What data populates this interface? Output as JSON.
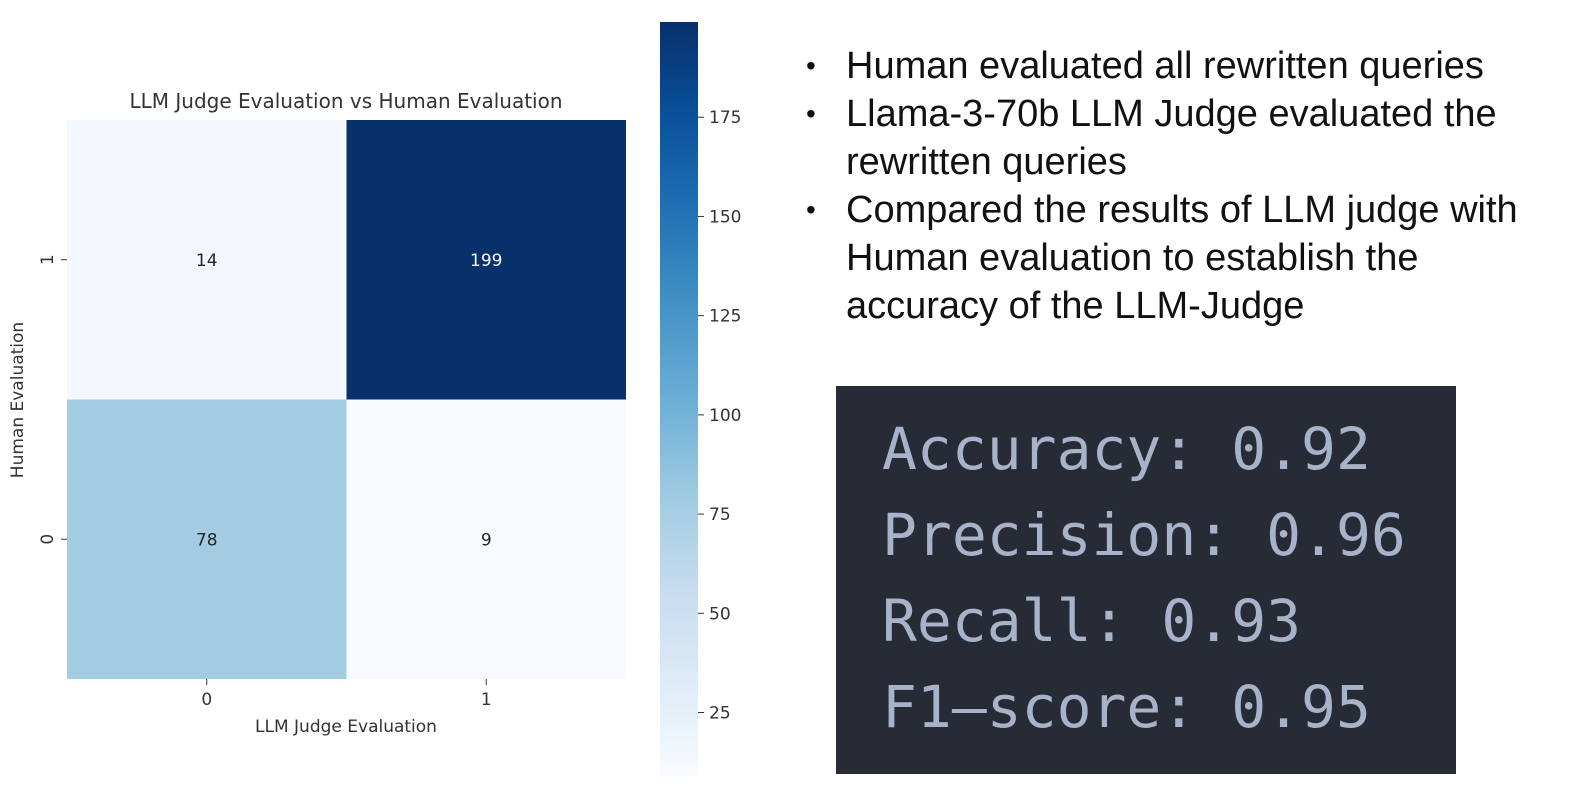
{
  "chart_data": {
    "type": "heatmap",
    "title": "LLM Judge Evaluation vs Human Evaluation",
    "xlabel": "LLM Judge Evaluation",
    "ylabel": "Human Evaluation",
    "x_categories": [
      "0",
      "1"
    ],
    "y_categories": [
      "1",
      "0"
    ],
    "values": [
      [
        14,
        199
      ],
      [
        78,
        9
      ]
    ],
    "colormap": "Blues",
    "colorbar": {
      "ticks": [
        25,
        50,
        75,
        100,
        125,
        150,
        175
      ],
      "tick_labels": [
        "25",
        "50",
        "75",
        "100",
        "125",
        "150",
        "175"
      ],
      "range": [
        9,
        199
      ]
    },
    "grid": false
  },
  "notes": {
    "bullets": [
      {
        "text": "Human evaluated all rewritten queries"
      },
      {
        "text": "Llama-3-70b LLM Judge evaluated the rewritten queries"
      },
      {
        "text": "Compared the results of LLM judge with Human evaluation to establish the accuracy of the LLM-Judge"
      }
    ]
  },
  "metrics": {
    "lines": [
      {
        "text": "Accuracy: 0.92"
      },
      {
        "text": "Precision: 0.96"
      },
      {
        "text": "Recall: 0.93"
      },
      {
        "text": "F1–score: 0.95"
      }
    ],
    "background": "#262b36",
    "text_color": "#a8b2c8"
  }
}
